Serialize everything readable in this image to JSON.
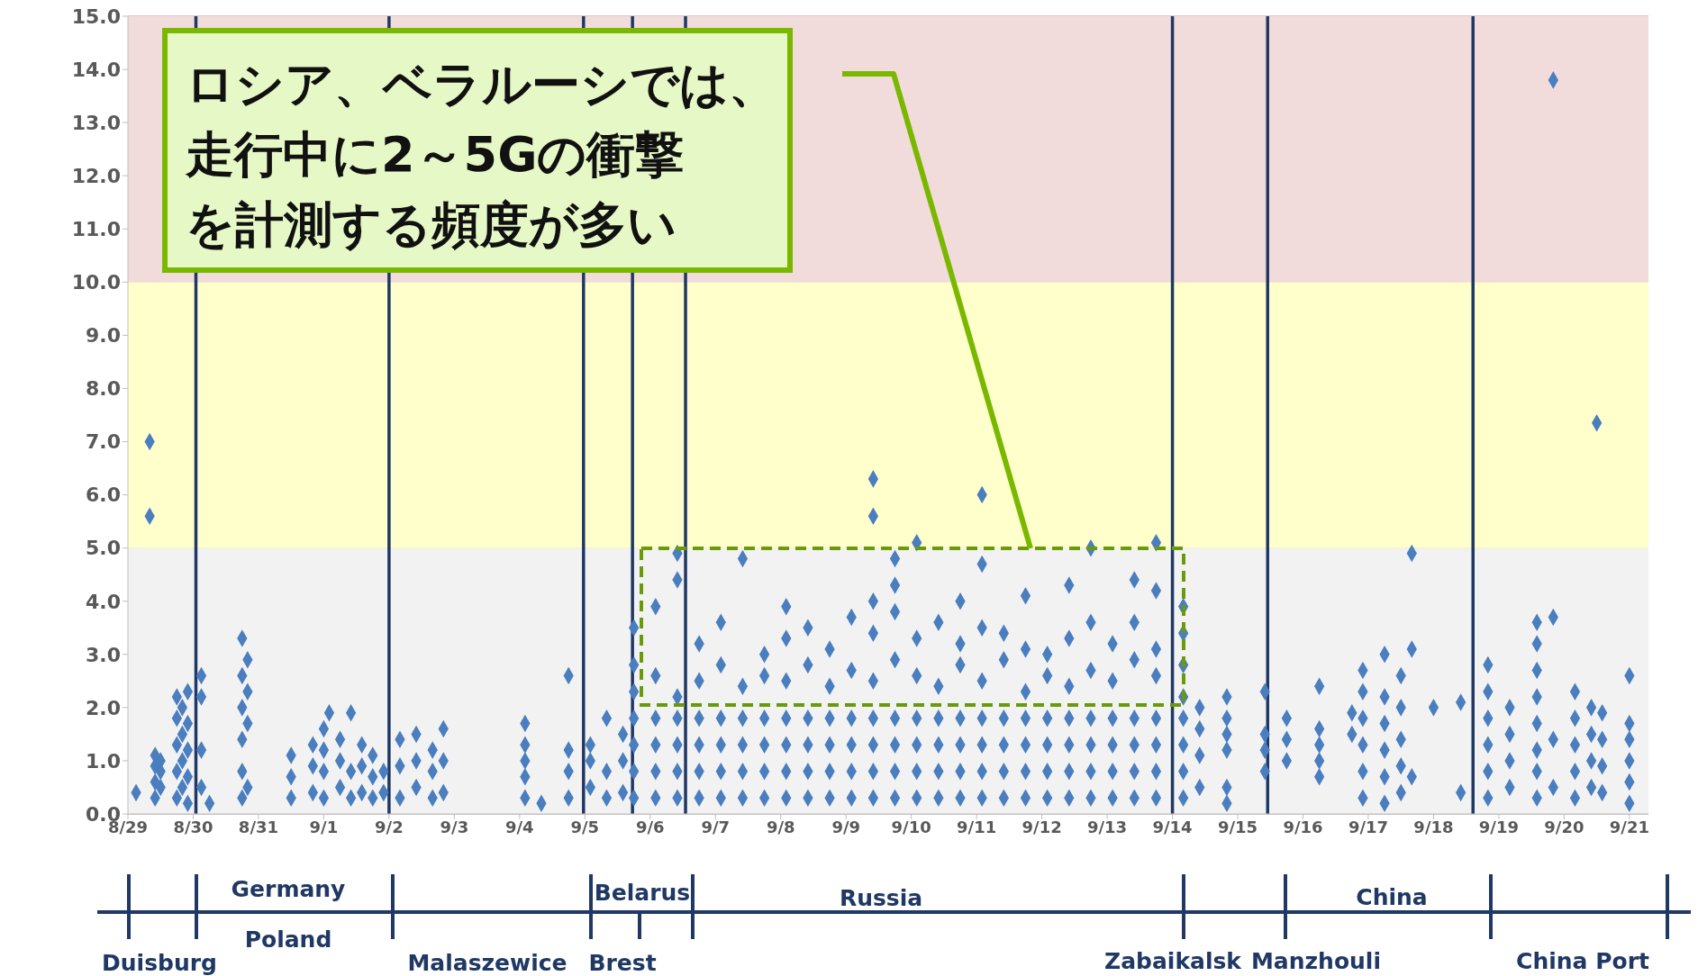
{
  "chart_data": {
    "type": "scatter",
    "xlim": [
      "--08-29",
      "--09-21T07:00"
    ],
    "xticks": [
      {
        "value": "--08-29",
        "label": "8/29"
      },
      {
        "value": "--08-30",
        "label": "8/30"
      },
      {
        "value": "--08-31",
        "label": "8/31"
      },
      {
        "value": "--09-01",
        "label": "9/1"
      },
      {
        "value": "--09-02",
        "label": "9/2"
      },
      {
        "value": "--09-03",
        "label": "9/3"
      },
      {
        "value": "--09-04",
        "label": "9/4"
      },
      {
        "value": "--09-05",
        "label": "9/5"
      },
      {
        "value": "--09-06",
        "label": "9/6"
      },
      {
        "value": "--09-07",
        "label": "9/7"
      },
      {
        "value": "--09-08",
        "label": "9/8"
      },
      {
        "value": "--09-09",
        "label": "9/9"
      },
      {
        "value": "--09-10",
        "label": "9/10"
      },
      {
        "value": "--09-11",
        "label": "9/11"
      },
      {
        "value": "--09-12",
        "label": "9/12"
      },
      {
        "value": "--09-13",
        "label": "9/13"
      },
      {
        "value": "--09-14",
        "label": "9/14"
      },
      {
        "value": "--09-15",
        "label": "9/15"
      },
      {
        "value": "--09-16",
        "label": "9/16"
      },
      {
        "value": "--09-17",
        "label": "9/17"
      },
      {
        "value": "--09-18",
        "label": "9/18"
      },
      {
        "value": "--09-19",
        "label": "9/19"
      },
      {
        "value": "--09-20",
        "label": "9/20"
      },
      {
        "value": "--09-21",
        "label": "9/21"
      }
    ],
    "ylim": [
      0,
      15
    ],
    "yticks": [
      {
        "value": 0,
        "label": "0.0"
      },
      {
        "value": 1,
        "label": "1.0"
      },
      {
        "value": 2,
        "label": "2.0"
      },
      {
        "value": 3,
        "label": "3.0"
      },
      {
        "value": 4,
        "label": "4.0"
      },
      {
        "value": 5,
        "label": "5.0"
      },
      {
        "value": 6,
        "label": "6.0"
      },
      {
        "value": 7,
        "label": "7.0"
      },
      {
        "value": 8,
        "label": "8.0"
      },
      {
        "value": 9,
        "label": "9.0"
      },
      {
        "value": 10,
        "label": "10.0"
      },
      {
        "value": 11,
        "label": "11.0"
      },
      {
        "value": 12,
        "label": "12.0"
      },
      {
        "value": 13,
        "label": "13.0"
      },
      {
        "value": 14,
        "label": "14.0"
      },
      {
        "value": 15,
        "label": "15.0"
      }
    ],
    "grid": "y",
    "legend": false,
    "marker": "diamond",
    "bands": [
      {
        "axis": "y",
        "from": 0,
        "to": 5,
        "color": "#f2f2f2"
      },
      {
        "axis": "y",
        "from": 5,
        "to": 10,
        "color": "#ffffcc"
      },
      {
        "axis": "y",
        "from": 10,
        "to": 15,
        "color": "#f2dcdb"
      }
    ],
    "ref_lines": [
      {
        "axis": "x",
        "value": "--08-30T01:00",
        "color": "#1f3864"
      },
      {
        "axis": "x",
        "value": "--09-02T00:00",
        "color": "#1f3864"
      },
      {
        "axis": "x",
        "value": "--09-04T23:30",
        "color": "#1f3864"
      },
      {
        "axis": "x",
        "value": "--09-05T17:30",
        "color": "#1f3864"
      },
      {
        "axis": "x",
        "value": "--09-06T13:00",
        "color": "#1f3864"
      },
      {
        "axis": "x",
        "value": "--09-14T00:00",
        "color": "#1f3864"
      },
      {
        "axis": "x",
        "value": "--09-15T11:00",
        "color": "#1f3864"
      },
      {
        "axis": "x",
        "value": "--09-18T14:30",
        "color": "#1f3864"
      }
    ],
    "annotations": [
      "ロシア、ベラルーシでは、走行中に2～5Gの衝撃を計測する頻度が多い",
      "Germany",
      "Poland",
      "Belarus",
      "Russia",
      "China",
      "Duisburg",
      "Malaszewice",
      "Brest",
      "Zabaikalsk",
      "Manzhouli",
      "China Port"
    ],
    "series": [
      {
        "color": "#4a7ebf",
        "x": [
          "--08-29T03:00",
          "--08-29T08:00",
          "--08-29T08:00",
          "--08-29T10:00",
          "--08-29T10:00",
          "--08-29T10:00",
          "--08-29T10:00",
          "--08-29T12:00",
          "--08-29T12:00",
          "--08-29T12:00",
          "--08-29T18:00",
          "--08-29T18:00",
          "--08-29T18:00",
          "--08-29T18:00",
          "--08-29T18:00",
          "--08-29T20:00",
          "--08-29T20:00",
          "--08-29T20:00",
          "--08-29T20:00",
          "--08-29T22:00",
          "--08-29T22:00",
          "--08-29T22:00",
          "--08-29T22:00",
          "--08-29T22:00",
          "--08-30T03:00",
          "--08-30T03:00",
          "--08-30T03:00",
          "--08-30T03:00",
          "--08-30T06:00",
          "--08-30T18:00",
          "--08-30T18:00",
          "--08-30T18:00",
          "--08-30T18:00",
          "--08-30T18:00",
          "--08-30T18:00",
          "--08-30T20:00",
          "--08-30T20:00",
          "--08-30T20:00",
          "--08-30T20:00",
          "--08-31T12:00",
          "--08-31T12:00",
          "--08-31T12:00",
          "--08-31T20:00",
          "--08-31T20:00",
          "--08-31T20:00",
          "--09-01T00:00",
          "--09-01T00:00",
          "--09-01T00:00",
          "--09-01T00:00",
          "--09-01T02:00",
          "--09-01T06:00",
          "--09-01T06:00",
          "--09-01T06:00",
          "--09-01T10:00",
          "--09-01T10:00",
          "--09-01T10:00",
          "--09-01T14:00",
          "--09-01T14:00",
          "--09-01T14:00",
          "--09-01T18:00",
          "--09-01T18:00",
          "--09-01T18:00",
          "--09-01T22:00",
          "--09-01T22:00",
          "--09-02T04:00",
          "--09-02T04:00",
          "--09-02T04:00",
          "--09-02T10:00",
          "--09-02T10:00",
          "--09-02T10:00",
          "--09-02T16:00",
          "--09-02T16:00",
          "--09-02T16:00",
          "--09-02T20:00",
          "--09-02T20:00",
          "--09-02T20:00",
          "--09-04T02:00",
          "--09-04T02:00",
          "--09-04T02:00",
          "--09-04T02:00",
          "--09-04T02:00",
          "--09-04T08:00",
          "--09-04T18:00",
          "--09-04T18:00",
          "--09-04T18:00",
          "--09-04T18:00",
          "--09-05T02:00",
          "--09-05T02:00",
          "--09-05T02:00",
          "--09-05T08:00",
          "--09-05T08:00",
          "--09-05T08:00",
          "--09-05T14:00",
          "--09-05T14:00",
          "--09-05T14:00",
          "--09-05T18:00",
          "--09-05T18:00",
          "--09-05T18:00",
          "--09-05T18:00",
          "--09-05T18:00",
          "--09-05T18:00",
          "--09-05T18:00",
          "--09-06T02:00",
          "--09-06T02:00",
          "--09-06T02:00",
          "--09-06T02:00",
          "--09-06T02:00",
          "--09-06T02:00",
          "--09-06T10:00",
          "--09-06T10:00",
          "--09-06T10:00",
          "--09-06T10:00",
          "--09-06T10:00",
          "--09-06T10:00",
          "--09-06T10:00",
          "--09-06T18:00",
          "--09-06T18:00",
          "--09-06T18:00",
          "--09-06T18:00",
          "--09-06T18:00",
          "--09-06T18:00",
          "--09-07T02:00",
          "--09-07T02:00",
          "--09-07T02:00",
          "--09-07T02:00",
          "--09-07T02:00",
          "--09-07T02:00",
          "--09-07T10:00",
          "--09-07T10:00",
          "--09-07T10:00",
          "--09-07T10:00",
          "--09-07T10:00",
          "--09-07T10:00",
          "--09-07T18:00",
          "--09-07T18:00",
          "--09-07T18:00",
          "--09-07T18:00",
          "--09-07T18:00",
          "--09-07T18:00",
          "--09-08T02:00",
          "--09-08T02:00",
          "--09-08T02:00",
          "--09-08T02:00",
          "--09-08T02:00",
          "--09-08T02:00",
          "--09-08T02:00",
          "--09-08T10:00",
          "--09-08T10:00",
          "--09-08T10:00",
          "--09-08T10:00",
          "--09-08T10:00",
          "--09-08T10:00",
          "--09-08T18:00",
          "--09-08T18:00",
          "--09-08T18:00",
          "--09-08T18:00",
          "--09-08T18:00",
          "--09-08T18:00",
          "--09-09T02:00",
          "--09-09T02:00",
          "--09-09T02:00",
          "--09-09T02:00",
          "--09-09T02:00",
          "--09-09T02:00",
          "--09-09T10:00",
          "--09-09T10:00",
          "--09-09T10:00",
          "--09-09T10:00",
          "--09-09T10:00",
          "--09-09T10:00",
          "--09-09T10:00",
          "--09-09T10:00",
          "--09-09T10:00",
          "--09-09T18:00",
          "--09-09T18:00",
          "--09-09T18:00",
          "--09-09T18:00",
          "--09-09T18:00",
          "--09-09T18:00",
          "--09-09T18:00",
          "--09-09T18:00",
          "--09-10T02:00",
          "--09-10T02:00",
          "--09-10T02:00",
          "--09-10T02:00",
          "--09-10T02:00",
          "--09-10T02:00",
          "--09-10T02:00",
          "--09-10T10:00",
          "--09-10T10:00",
          "--09-10T10:00",
          "--09-10T10:00",
          "--09-10T10:00",
          "--09-10T10:00",
          "--09-10T18:00",
          "--09-10T18:00",
          "--09-10T18:00",
          "--09-10T18:00",
          "--09-10T18:00",
          "--09-10T18:00",
          "--09-10T18:00",
          "--09-11T02:00",
          "--09-11T02:00",
          "--09-11T02:00",
          "--09-11T02:00",
          "--09-11T02:00",
          "--09-11T02:00",
          "--09-11T02:00",
          "--09-11T02:00",
          "--09-11T10:00",
          "--09-11T10:00",
          "--09-11T10:00",
          "--09-11T10:00",
          "--09-11T10:00",
          "--09-11T10:00",
          "--09-11T18:00",
          "--09-11T18:00",
          "--09-11T18:00",
          "--09-11T18:00",
          "--09-11T18:00",
          "--09-11T18:00",
          "--09-11T18:00",
          "--09-12T02:00",
          "--09-12T02:00",
          "--09-12T02:00",
          "--09-12T02:00",
          "--09-12T02:00",
          "--09-12T02:00",
          "--09-12T10:00",
          "--09-12T10:00",
          "--09-12T10:00",
          "--09-12T10:00",
          "--09-12T10:00",
          "--09-12T10:00",
          "--09-12T10:00",
          "--09-12T18:00",
          "--09-12T18:00",
          "--09-12T18:00",
          "--09-12T18:00",
          "--09-12T18:00",
          "--09-12T18:00",
          "--09-12T18:00",
          "--09-13T02:00",
          "--09-13T02:00",
          "--09-13T02:00",
          "--09-13T02:00",
          "--09-13T02:00",
          "--09-13T02:00",
          "--09-13T10:00",
          "--09-13T10:00",
          "--09-13T10:00",
          "--09-13T10:00",
          "--09-13T10:00",
          "--09-13T10:00",
          "--09-13T10:00",
          "--09-13T18:00",
          "--09-13T18:00",
          "--09-13T18:00",
          "--09-13T18:00",
          "--09-13T18:00",
          "--09-13T18:00",
          "--09-13T18:00",
          "--09-13T18:00",
          "--09-14T04:00",
          "--09-14T04:00",
          "--09-14T04:00",
          "--09-14T04:00",
          "--09-14T04:00",
          "--09-14T04:00",
          "--09-14T04:00",
          "--09-14T04:00",
          "--09-14T10:00",
          "--09-14T10:00",
          "--09-14T10:00",
          "--09-14T10:00",
          "--09-14T20:00",
          "--09-14T20:00",
          "--09-14T20:00",
          "--09-14T20:00",
          "--09-14T20:00",
          "--09-14T20:00",
          "--09-15T10:00",
          "--09-15T10:00",
          "--09-15T10:00",
          "--09-15T10:00",
          "--09-15T18:00",
          "--09-15T18:00",
          "--09-15T18:00",
          "--09-16T06:00",
          "--09-16T06:00",
          "--09-16T06:00",
          "--09-16T06:00",
          "--09-16T06:00",
          "--09-16T18:00",
          "--09-16T18:00",
          "--09-16T22:00",
          "--09-16T22:00",
          "--09-16T22:00",
          "--09-16T22:00",
          "--09-16T22:00",
          "--09-16T22:00",
          "--09-17T06:00",
          "--09-17T06:00",
          "--09-17T06:00",
          "--09-17T06:00",
          "--09-17T06:00",
          "--09-17T06:00",
          "--09-17T12:00",
          "--09-17T12:00",
          "--09-17T12:00",
          "--09-17T12:00",
          "--09-17T12:00",
          "--09-17T16:00",
          "--09-17T16:00",
          "--09-17T16:00",
          "--09-18T00:00",
          "--09-18T10:00",
          "--09-18T10:00",
          "--09-18T20:00",
          "--09-18T20:00",
          "--09-18T20:00",
          "--09-18T20:00",
          "--09-18T20:00",
          "--09-18T20:00",
          "--09-19T04:00",
          "--09-19T04:00",
          "--09-19T04:00",
          "--09-19T04:00",
          "--09-19T14:00",
          "--09-19T14:00",
          "--09-19T14:00",
          "--09-19T14:00",
          "--09-19T14:00",
          "--09-19T14:00",
          "--09-19T14:00",
          "--09-19T14:00",
          "--09-19T20:00",
          "--09-19T20:00",
          "--09-19T20:00",
          "--09-19T20:00",
          "--09-20T04:00",
          "--09-20T04:00",
          "--09-20T04:00",
          "--09-20T04:00",
          "--09-20T04:00",
          "--09-20T10:00",
          "--09-20T10:00",
          "--09-20T10:00",
          "--09-20T10:00",
          "--09-20T12:00",
          "--09-20T14:00",
          "--09-20T14:00",
          "--09-20T14:00",
          "--09-20T14:00",
          "--09-21T00:00",
          "--09-21T00:00",
          "--09-21T00:00",
          "--09-21T00:00",
          "--09-21T00:00",
          "--09-21T00:00"
        ],
        "values": [
          0.4,
          7.0,
          5.6,
          0.3,
          0.6,
          0.9,
          1.1,
          0.5,
          0.8,
          1.0,
          0.3,
          0.8,
          1.3,
          1.8,
          2.2,
          0.5,
          1.0,
          1.5,
          2.0,
          0.2,
          0.7,
          1.2,
          1.7,
          2.3,
          0.5,
          1.2,
          2.2,
          2.6,
          0.2,
          0.3,
          0.8,
          1.4,
          2.0,
          2.6,
          3.3,
          0.5,
          1.7,
          2.3,
          2.9,
          0.3,
          0.7,
          1.1,
          0.4,
          0.9,
          1.3,
          0.3,
          0.8,
          1.2,
          1.6,
          1.9,
          0.5,
          1.0,
          1.4,
          0.3,
          0.8,
          1.9,
          0.4,
          0.9,
          1.3,
          0.3,
          0.7,
          1.1,
          0.4,
          0.8,
          0.3,
          0.9,
          1.4,
          0.5,
          1.0,
          1.5,
          0.3,
          0.8,
          1.2,
          0.4,
          1.0,
          1.6,
          0.3,
          0.7,
          1.0,
          1.3,
          1.7,
          0.2,
          0.3,
          0.8,
          1.2,
          2.6,
          0.5,
          1.0,
          1.3,
          0.3,
          0.8,
          1.8,
          0.4,
          1.0,
          1.5,
          0.3,
          0.8,
          1.3,
          1.8,
          2.3,
          2.8,
          3.5,
          0.3,
          0.8,
          1.3,
          1.8,
          2.6,
          3.9,
          0.3,
          0.8,
          1.3,
          1.8,
          2.2,
          4.4,
          4.9,
          0.3,
          0.8,
          1.3,
          1.8,
          2.5,
          3.2,
          0.3,
          0.8,
          1.3,
          1.8,
          2.8,
          3.6,
          0.3,
          0.8,
          1.3,
          1.8,
          2.4,
          4.8,
          0.3,
          0.8,
          1.3,
          1.8,
          2.6,
          3.0,
          0.3,
          0.8,
          1.3,
          1.8,
          2.5,
          3.3,
          3.9,
          0.3,
          0.8,
          1.3,
          1.8,
          2.8,
          3.5,
          0.3,
          0.8,
          1.3,
          1.8,
          2.4,
          3.1,
          0.3,
          0.8,
          1.3,
          1.8,
          2.7,
          3.7,
          0.3,
          0.8,
          1.3,
          1.8,
          2.5,
          3.4,
          4.0,
          5.6,
          6.3,
          0.3,
          0.8,
          1.3,
          1.8,
          2.9,
          3.8,
          4.3,
          4.8,
          0.3,
          0.8,
          1.3,
          1.8,
          2.6,
          3.3,
          5.1,
          0.3,
          0.8,
          1.3,
          1.8,
          2.4,
          3.6,
          0.3,
          0.8,
          1.3,
          1.8,
          2.8,
          3.2,
          4.0,
          0.3,
          0.8,
          1.3,
          1.8,
          2.5,
          3.5,
          4.7,
          6.0,
          0.3,
          0.8,
          1.3,
          1.8,
          2.9,
          3.4,
          0.3,
          0.8,
          1.3,
          1.8,
          2.3,
          3.1,
          4.1,
          0.3,
          0.8,
          1.3,
          1.8,
          2.6,
          3.0,
          0.3,
          0.8,
          1.3,
          1.8,
          2.4,
          3.3,
          4.3,
          0.3,
          0.8,
          1.3,
          1.8,
          2.7,
          3.6,
          5.0,
          0.3,
          0.8,
          1.3,
          1.8,
          2.5,
          3.2,
          0.3,
          0.8,
          1.3,
          1.8,
          2.9,
          3.6,
          4.4,
          0.3,
          0.8,
          1.3,
          1.8,
          2.6,
          3.1,
          4.2,
          5.1,
          0.3,
          0.8,
          1.3,
          1.8,
          2.2,
          2.8,
          3.4,
          3.9,
          0.5,
          1.1,
          1.6,
          2.0,
          0.2,
          0.5,
          1.2,
          1.5,
          1.8,
          2.2,
          0.8,
          1.2,
          1.5,
          2.3,
          1.0,
          1.4,
          1.8,
          0.7,
          1.0,
          1.3,
          1.6,
          2.4,
          1.5,
          1.9,
          0.3,
          0.8,
          1.3,
          1.8,
          2.3,
          2.7,
          0.2,
          0.7,
          1.2,
          1.7,
          2.2,
          3.0,
          0.4,
          0.9,
          1.4,
          2.0,
          2.6,
          4.9,
          3.1,
          0.7,
          2.0,
          0.4,
          2.1,
          0.3,
          0.8,
          1.3,
          1.8,
          2.3,
          2.8,
          0.5,
          1.0,
          1.5,
          2.0,
          0.3,
          0.8,
          1.2,
          1.7,
          2.2,
          2.7,
          3.2,
          3.6,
          13.8,
          3.7,
          1.4,
          0.5,
          0.3,
          0.8,
          1.3,
          1.8,
          2.3,
          0.5,
          1.0,
          1.5,
          2.0,
          7.35,
          0.4,
          0.9,
          1.4,
          1.9,
          0.2,
          0.6,
          1.0,
          1.4,
          1.7,
          2.6
        ]
      }
    ]
  }
}
